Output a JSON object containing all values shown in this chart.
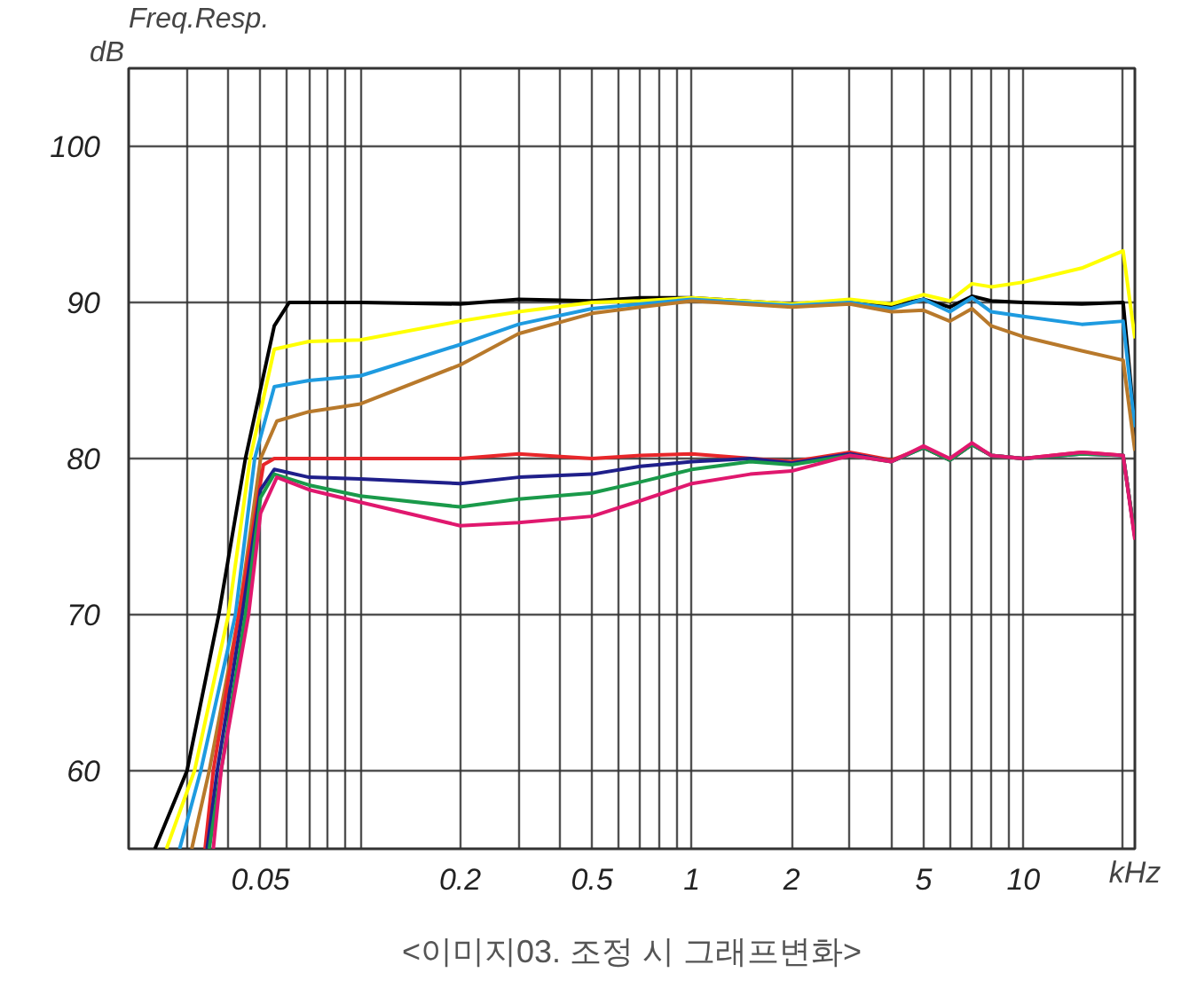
{
  "chart_data": {
    "type": "line",
    "title": "Freq.Resp.",
    "ylabel": "dB",
    "xlabel": "kHz",
    "annotations": [
      "<이미지03. 조정 시 그래프변화>"
    ],
    "log": "x",
    "grid": true,
    "line_style": "solid",
    "xlim": [
      0.02,
      21.7
    ],
    "ylim": [
      55,
      105
    ],
    "xticks": [
      {
        "value": 0.03,
        "label": null
      },
      {
        "value": 0.04,
        "label": null
      },
      0.05,
      {
        "value": 0.06,
        "label": null
      },
      {
        "value": 0.07,
        "label": null
      },
      {
        "value": 0.08,
        "label": null
      },
      {
        "value": 0.09,
        "label": null
      },
      {
        "value": 0.1,
        "label": null
      },
      0.2,
      {
        "value": 0.3,
        "label": null
      },
      {
        "value": 0.4,
        "label": null
      },
      0.5,
      {
        "value": 0.6,
        "label": null
      },
      {
        "value": 0.7,
        "label": null
      },
      {
        "value": 0.8,
        "label": null
      },
      {
        "value": 0.9,
        "label": null
      },
      1,
      2,
      {
        "value": 3,
        "label": null
      },
      {
        "value": 4,
        "label": null
      },
      5,
      {
        "value": 6,
        "label": null
      },
      {
        "value": 7,
        "label": null
      },
      {
        "value": 8,
        "label": null
      },
      {
        "value": 9,
        "label": null
      },
      10,
      {
        "value": 20,
        "label": null
      }
    ],
    "yticks": [
      60,
      70,
      80,
      90,
      100
    ],
    "series": [
      {
        "color": "#000000",
        "x": [
          0.024,
          0.03,
          0.0374,
          0.045,
          0.055,
          0.061,
          0.1,
          0.2,
          0.3,
          0.5,
          0.7,
          1,
          2,
          3,
          4,
          5,
          6,
          7,
          8,
          10,
          15,
          20,
          21.7
        ],
        "values": [
          55,
          60,
          70,
          80,
          88.5,
          90,
          90,
          89.9,
          90.2,
          90.1,
          90.3,
          90.3,
          89.9,
          90.1,
          89.8,
          90.2,
          89.7,
          90.4,
          90.1,
          90.0,
          89.9,
          90,
          82
        ]
      },
      {
        "color": "#ffff00",
        "x": [
          0.026,
          0.0316,
          0.04,
          0.0465,
          0.055,
          0.07,
          0.1,
          0.2,
          0.3,
          0.5,
          0.7,
          1,
          2,
          3,
          4,
          5,
          6,
          7,
          8,
          10,
          15,
          20,
          21.7
        ],
        "values": [
          55,
          60,
          70,
          80,
          87,
          87.5,
          87.6,
          88.8,
          89.4,
          90,
          90.1,
          90.3,
          89.9,
          90.2,
          89.9,
          90.5,
          90.1,
          91.2,
          91,
          91.3,
          92.2,
          93.3,
          87.7
        ]
      },
      {
        "color": "#1e9be0",
        "x": [
          0.0285,
          0.033,
          0.042,
          0.048,
          0.055,
          0.07,
          0.1,
          0.2,
          0.3,
          0.5,
          0.7,
          1,
          2,
          3,
          4,
          5,
          6,
          7,
          8,
          10,
          15,
          20,
          21.7
        ],
        "values": [
          55,
          60,
          70,
          80,
          84.6,
          85,
          85.3,
          87.3,
          88.6,
          89.6,
          89.9,
          90.2,
          89.8,
          90,
          89.6,
          90.2,
          89.4,
          90.3,
          89.4,
          89.1,
          88.6,
          88.8,
          82
        ]
      },
      {
        "color": "#b8792b",
        "x": [
          0.031,
          0.035,
          0.043,
          0.05,
          0.056,
          0.07,
          0.1,
          0.2,
          0.3,
          0.5,
          0.7,
          1,
          2,
          3,
          4,
          5,
          6,
          7,
          8,
          10,
          15,
          20,
          21.7
        ],
        "values": [
          55,
          60,
          70,
          80,
          82.4,
          83,
          83.5,
          86,
          88,
          89.3,
          89.7,
          90.1,
          89.7,
          89.9,
          89.4,
          89.5,
          88.8,
          89.6,
          88.5,
          87.8,
          86.9,
          86.3,
          80.5
        ]
      },
      {
        "color": "#e8262a",
        "x": [
          0.034,
          0.036,
          0.043,
          0.051,
          0.055,
          0.07,
          0.1,
          0.2,
          0.3,
          0.5,
          0.7,
          1,
          2,
          3,
          4,
          5,
          6,
          7,
          8,
          10,
          15,
          20,
          21.7
        ],
        "values": [
          55,
          60,
          70,
          79.6,
          80,
          80,
          80,
          80,
          80.3,
          80,
          80.2,
          80.3,
          79.8,
          80.4,
          79.9,
          80.7,
          79.9,
          80.9,
          80.2,
          80,
          80.4,
          80.2,
          75
        ]
      },
      {
        "color": "#1f1f8a",
        "x": [
          0.0345,
          0.037,
          0.044,
          0.05,
          0.055,
          0.07,
          0.1,
          0.2,
          0.3,
          0.5,
          0.7,
          1,
          1.5,
          2,
          3,
          4,
          5,
          6,
          7,
          8,
          10,
          15,
          20,
          21.7
        ],
        "values": [
          55,
          60,
          70,
          78,
          79.3,
          78.8,
          78.7,
          78.4,
          78.8,
          79,
          79.5,
          79.8,
          80,
          79.7,
          80.3,
          79.8,
          80.7,
          79.9,
          80.9,
          80.2,
          80,
          80.3,
          80.2,
          75
        ]
      },
      {
        "color": "#1a9a4a",
        "x": [
          0.035,
          0.038,
          0.045,
          0.05,
          0.055,
          0.07,
          0.1,
          0.2,
          0.3,
          0.5,
          0.7,
          1,
          1.5,
          2,
          3,
          4,
          5,
          6,
          7,
          8,
          10,
          15,
          20,
          21.7
        ],
        "values": [
          55,
          60,
          70,
          77.5,
          79,
          78.3,
          77.6,
          76.9,
          77.4,
          77.8,
          78.5,
          79.3,
          79.8,
          79.6,
          80.2,
          79.8,
          80.7,
          79.9,
          80.9,
          80.2,
          80,
          80.3,
          80.2,
          75
        ]
      },
      {
        "color": "#e0186e",
        "x": [
          0.036,
          0.038,
          0.046,
          0.05,
          0.056,
          0.07,
          0.1,
          0.2,
          0.3,
          0.5,
          0.7,
          1,
          1.5,
          2,
          3,
          4,
          5,
          6,
          7,
          8,
          10,
          15,
          20,
          21.7
        ],
        "values": [
          55,
          60,
          70,
          76.5,
          78.8,
          78,
          77.2,
          75.7,
          75.9,
          76.3,
          77.3,
          78.4,
          79,
          79.2,
          80.2,
          79.8,
          80.8,
          80,
          81,
          80.2,
          80,
          80.4,
          80.2,
          74.8
        ]
      }
    ]
  }
}
